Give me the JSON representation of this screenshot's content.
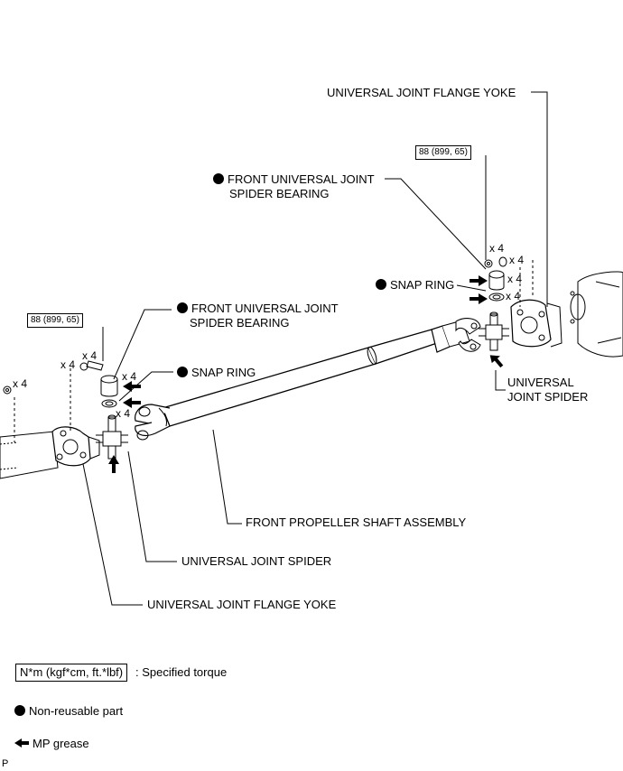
{
  "labels": {
    "flange_yoke_right": "UNIVERSAL JOINT FLANGE YOKE",
    "bearing_right_line1": "FRONT UNIVERSAL JOINT",
    "bearing_right_line2": "SPIDER BEARING",
    "snap_ring_right": "SNAP RING",
    "spider_right_line1": "UNIVERSAL",
    "spider_right_line2": "JOINT SPIDER",
    "bearing_left_line1": "FRONT UNIVERSAL JOINT",
    "bearing_left_line2": "SPIDER BEARING",
    "snap_ring_left": "SNAP RING",
    "shaft_assembly": "FRONT PROPELLER SHAFT ASSEMBLY",
    "spider_left": "UNIVERSAL JOINT SPIDER",
    "flange_yoke_left": "UNIVERSAL JOINT FLANGE YOKE"
  },
  "torque": {
    "right": "88 (899, 65)",
    "left": "88 (899, 65)"
  },
  "quantities": {
    "q1": "x 4",
    "q2": "x 4",
    "q3": "x 4",
    "q4": "x 4",
    "q5": "x 4",
    "q6": "x 4",
    "q7": "x 4",
    "q8": "x 4",
    "q9": "x 4"
  },
  "legend": {
    "torque_unit": "N*m (kgf*cm, ft.*lbf)",
    "torque_desc": ": Specified torque",
    "non_reusable": "Non-reusable part",
    "grease": "MP grease"
  },
  "corner_mark": "P"
}
